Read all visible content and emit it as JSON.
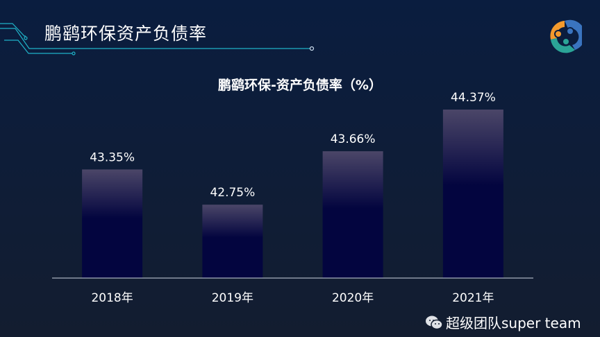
{
  "header": {
    "title": "鹏鹞环保资产负债率"
  },
  "watermark": {
    "text": "超级团队super team",
    "icon": "wechat-icon"
  },
  "colors": {
    "bar_top": "#4b4668",
    "bar_bottom": "#03053f",
    "axis": "#a9b1bf",
    "accent_line": "#1fb3c8"
  },
  "chart_data": {
    "type": "bar",
    "title": "鹏鹞环保-资产负债率（%）",
    "categories": [
      "2018年",
      "2019年",
      "2020年",
      "2021年"
    ],
    "values": [
      43.35,
      42.75,
      43.66,
      44.37
    ],
    "labels": [
      "43.35%",
      "42.75%",
      "43.66%",
      "44.37%"
    ],
    "xlabel": "",
    "ylabel": "",
    "ylim": [
      41.5,
      44.5
    ],
    "grid": false,
    "legend": "none"
  }
}
